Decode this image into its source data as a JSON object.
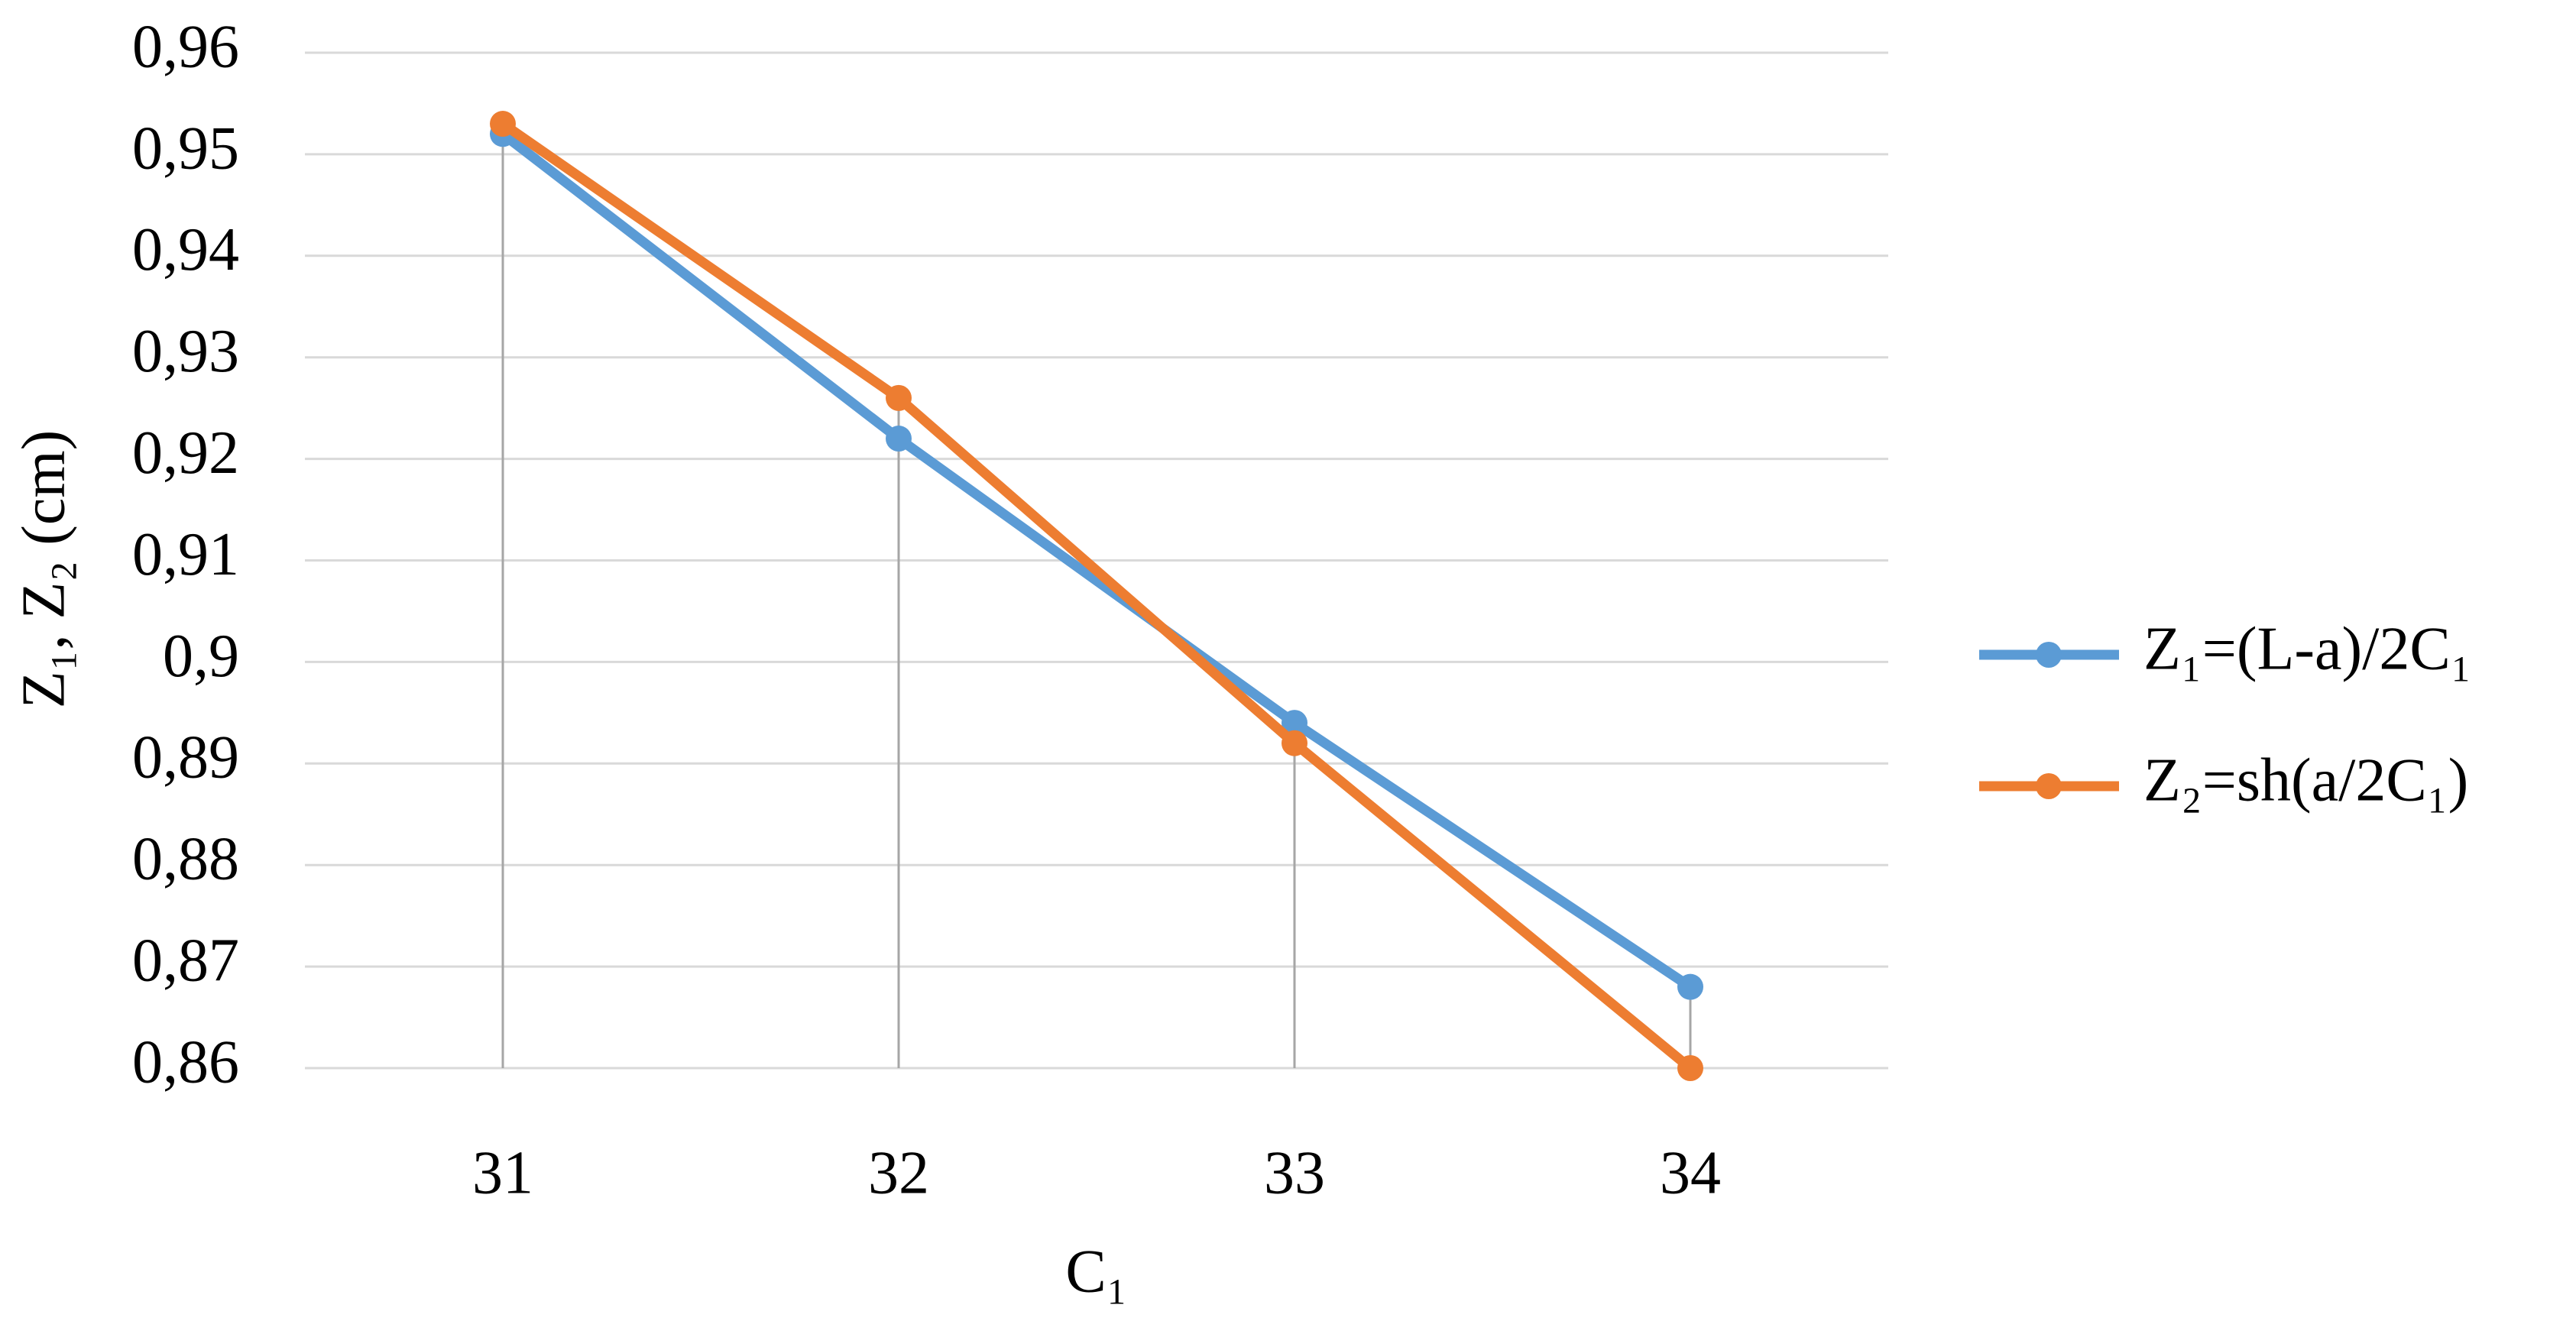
{
  "chart_data": {
    "type": "line",
    "x_label": "C₁",
    "y_label": "Z₁, Z₂ (cm)",
    "categories": [
      "31",
      "32",
      "33",
      "34"
    ],
    "series": [
      {
        "name": "Z₁=(L-a)/2C₁",
        "color": "#5b9bd5",
        "values": [
          0.952,
          0.922,
          0.894,
          0.868
        ]
      },
      {
        "name": "Z₂=sh(a/2C₁)",
        "color": "#ed7d31",
        "values": [
          0.953,
          0.926,
          0.892,
          0.86
        ]
      }
    ],
    "ylim": [
      0.86,
      0.96
    ],
    "yticks": [
      {
        "value": 0.86,
        "label": "0,86"
      },
      {
        "value": 0.87,
        "label": "0,87"
      },
      {
        "value": 0.88,
        "label": "0,88"
      },
      {
        "value": 0.89,
        "label": "0,89"
      },
      {
        "value": 0.9,
        "label": "0,9"
      },
      {
        "value": 0.91,
        "label": "0,91"
      },
      {
        "value": 0.92,
        "label": "0,92"
      },
      {
        "value": 0.93,
        "label": "0,93"
      },
      {
        "value": 0.94,
        "label": "0,94"
      },
      {
        "value": 0.95,
        "label": "0,95"
      },
      {
        "value": 0.96,
        "label": "0,96"
      }
    ],
    "grid": true,
    "drop_lines": true,
    "legend": "right"
  }
}
